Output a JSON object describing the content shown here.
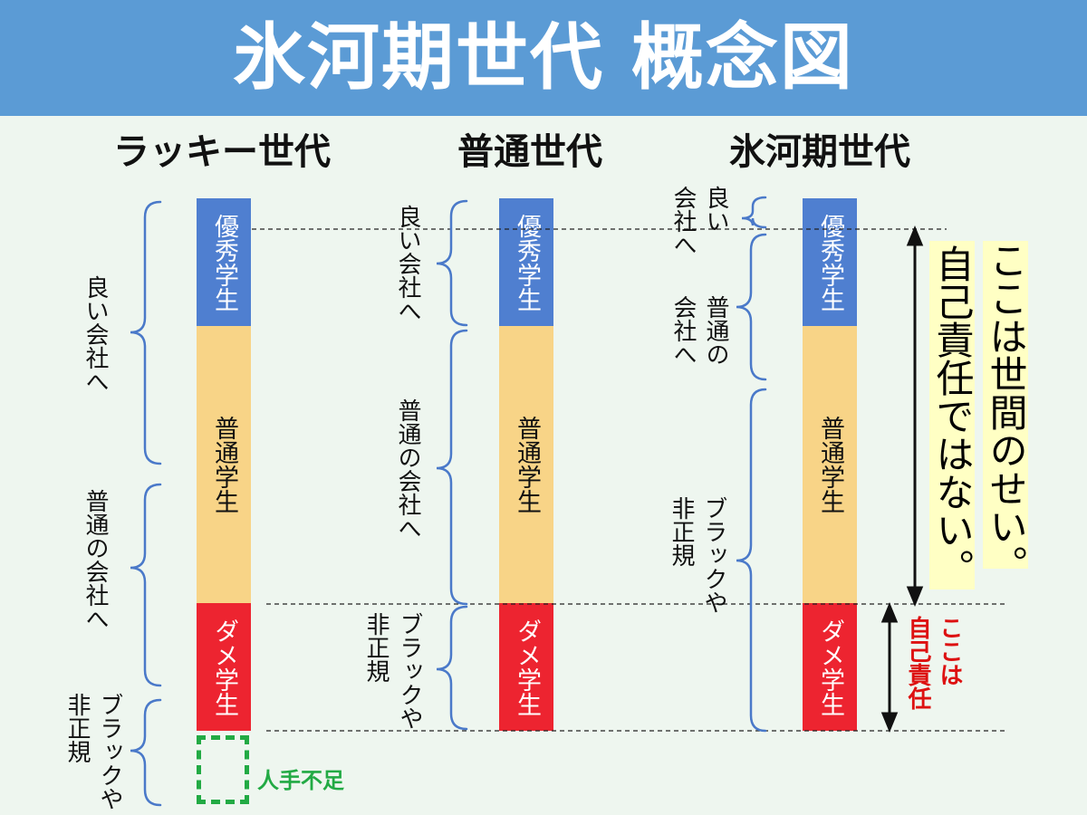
{
  "title": "氷河期世代 概念図",
  "columns": [
    {
      "heading": "ラッキー世代"
    },
    {
      "heading": "普通世代"
    },
    {
      "heading": "氷河期世代"
    }
  ],
  "bar": {
    "excellent": "優秀学生",
    "normal": "普通学生",
    "bad": "ダメ学生"
  },
  "lucky": {
    "good_company": "良い会社へ",
    "normal_company": "普通の会社へ",
    "black_line1": "ブラックや",
    "black_line2": "非正規",
    "labor_shortage": "人手不足"
  },
  "normal_gen": {
    "good_company": "良い会社へ",
    "normal_company": "普通の会社へ",
    "black_line1": "ブラックや",
    "black_line2": "非正規"
  },
  "ice_age": {
    "good_line1": "良い",
    "good_line2": "会社へ",
    "normal_line1": "普通の",
    "normal_line2": "会社へ",
    "black_line1": "ブラックや",
    "black_line2": "非正規"
  },
  "callouts": {
    "society_line1": "ここは世間のせい。",
    "society_line2": "自己責任ではない。",
    "self_line1": "ここは",
    "self_line2": "自己責任"
  },
  "colors": {
    "banner": "#5b9bd5",
    "excellent": "#4f7fd0",
    "normal": "#f8d487",
    "bad": "#ed2430",
    "shortage": "#22aa44",
    "self_responsibility": "#dd1111",
    "highlight": "#ffffc4"
  }
}
